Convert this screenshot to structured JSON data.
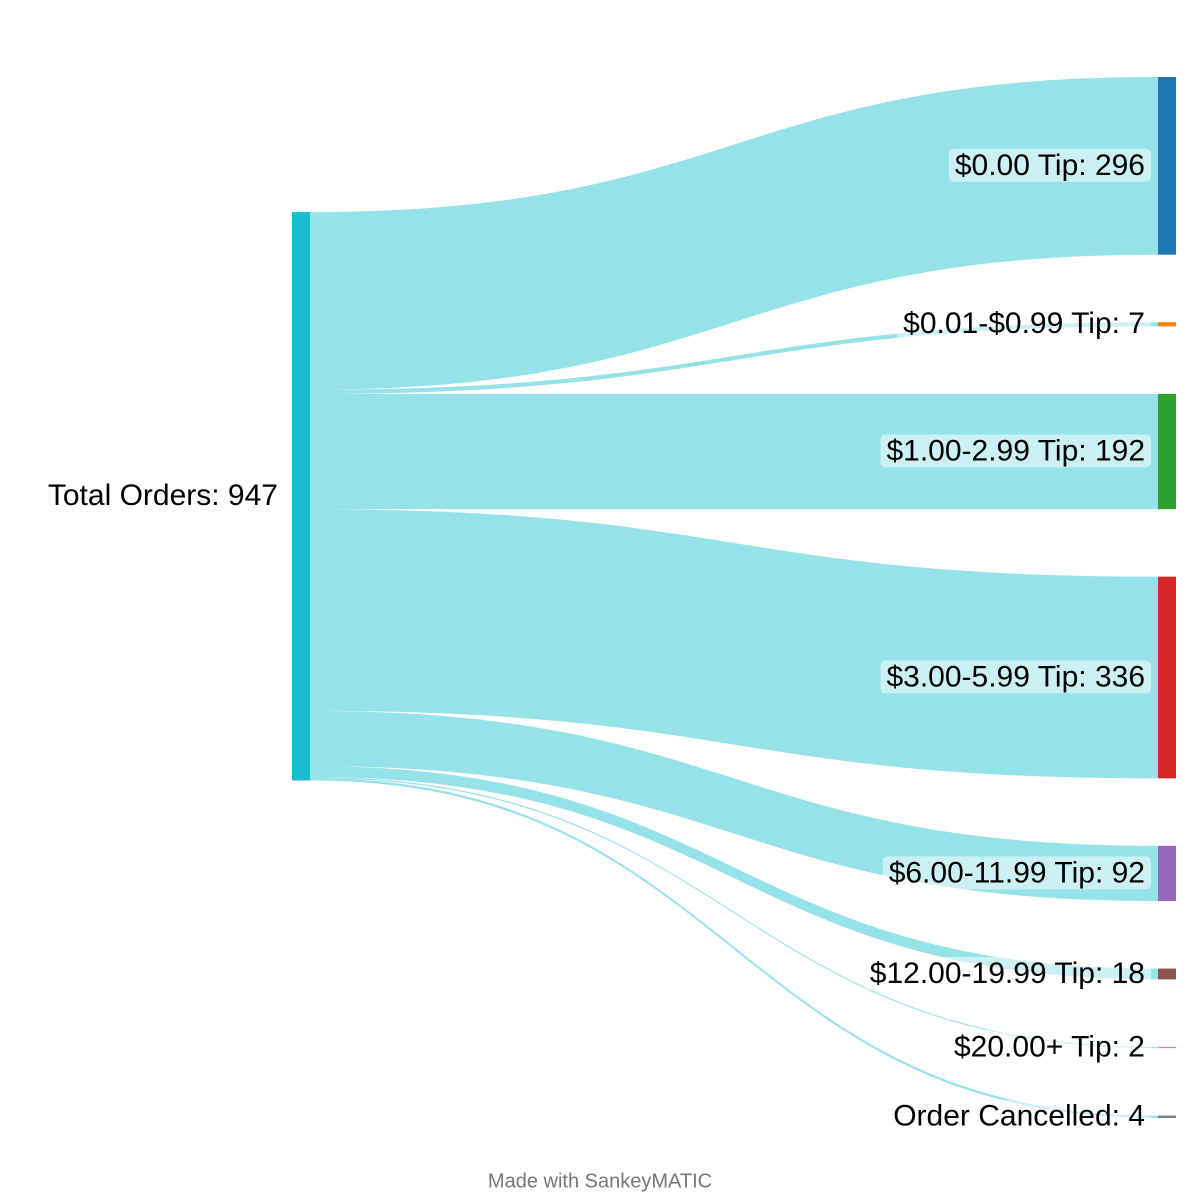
{
  "chart_data": {
    "type": "sankey",
    "source": {
      "label": "Total Orders: 947",
      "value": 947,
      "color": "#17becf"
    },
    "targets": [
      {
        "label": "$0.00 Tip: 296",
        "value": 296,
        "color": "#1f77b4"
      },
      {
        "label": "$0.01-$0.99 Tip: 7",
        "value": 7,
        "color": "#ff7f0e"
      },
      {
        "label": "$1.00-2.99 Tip: 192",
        "value": 192,
        "color": "#2ca02c"
      },
      {
        "label": "$3.00-5.99 Tip: 336",
        "value": 336,
        "color": "#d62728"
      },
      {
        "label": "$6.00-11.99 Tip: 92",
        "value": 92,
        "color": "#9467bd"
      },
      {
        "label": "$12.00-19.99 Tip: 18",
        "value": 18,
        "color": "#8c564b"
      },
      {
        "label": "$20.00+ Tip: 2",
        "value": 2,
        "color": "#e377c2"
      },
      {
        "label": "Order Cancelled: 4",
        "value": 4,
        "color": "#7f7f7f"
      }
    ]
  },
  "credit": "Made with SankeyMATIC"
}
